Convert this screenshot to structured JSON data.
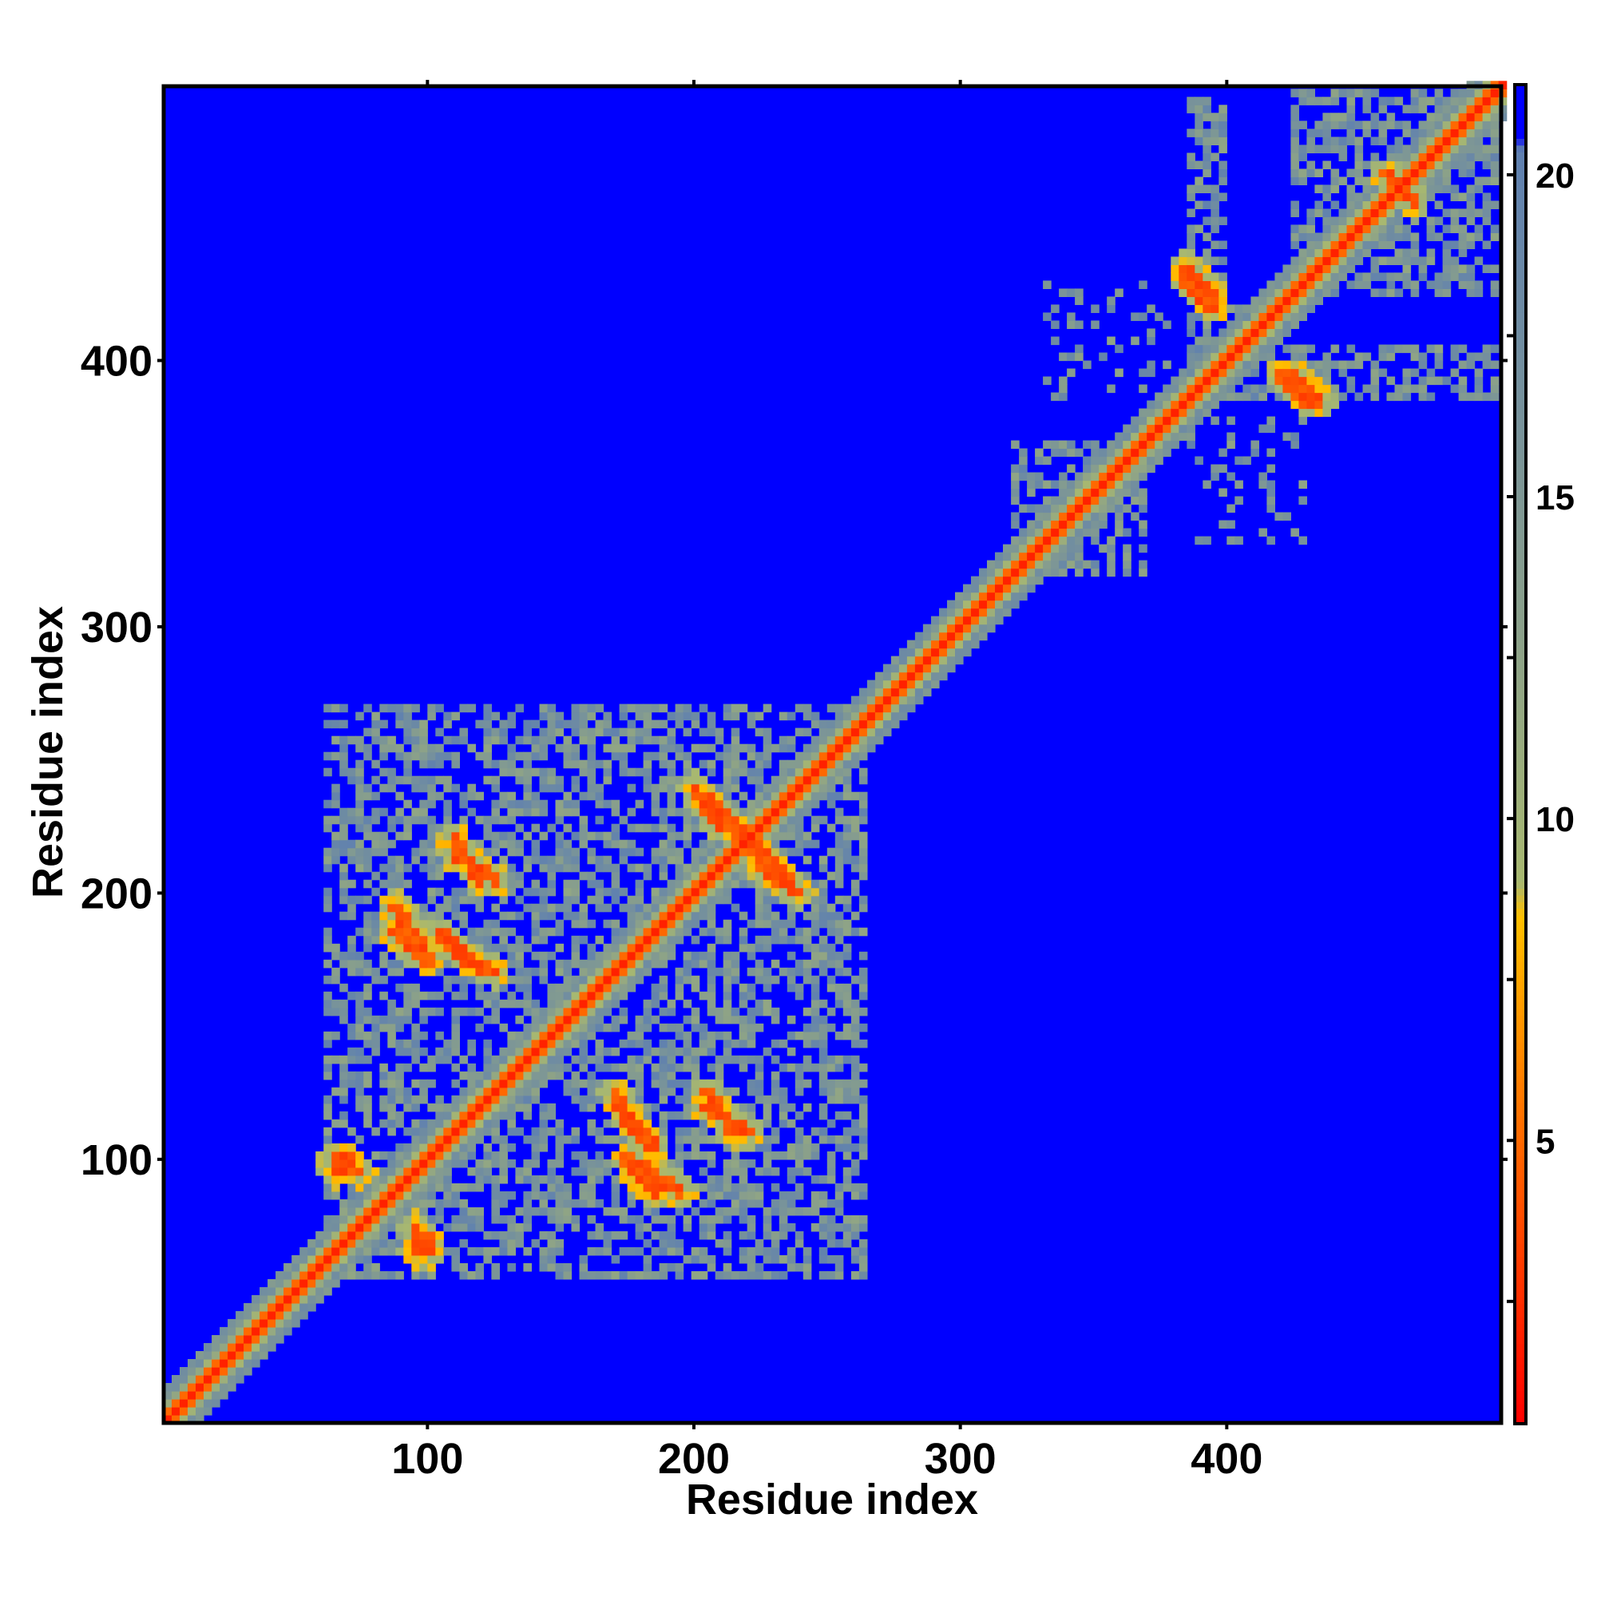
{
  "chart_data": {
    "type": "heatmap",
    "title": "",
    "xlabel": "Residue index",
    "ylabel": "Residue index",
    "xlim": [
      1,
      503
    ],
    "ylim": [
      1,
      503
    ],
    "x_ticks": [
      100,
      200,
      300,
      400
    ],
    "y_ticks": [
      100,
      200,
      300,
      400
    ],
    "colorbar": {
      "ticks": [
        5,
        10,
        15,
        20
      ],
      "range": [
        0.6,
        21.4
      ],
      "stops": [
        {
          "value": 0.6,
          "color": "#ff0000"
        },
        {
          "value": 6.0,
          "color": "#ff8000"
        },
        {
          "value": 8.5,
          "color": "#ffbf00"
        },
        {
          "value": 9.0,
          "color": "#a8b870"
        },
        {
          "value": 13.0,
          "color": "#8aa08a"
        },
        {
          "value": 20.4,
          "color": "#5f80b0"
        },
        {
          "value": 20.6,
          "color": "#0000ff"
        },
        {
          "value": 21.4,
          "color": "#0000ff"
        }
      ]
    },
    "background_value": 21,
    "contact_regions": [
      {
        "x": [
          60,
          265
        ],
        "y": [
          55,
          270
        ],
        "note": "large domain contact cluster"
      },
      {
        "x": [
          320,
          370
        ],
        "y": [
          320,
          370
        ]
      },
      {
        "x": [
          385,
          420
        ],
        "y": [
          385,
          420
        ]
      },
      {
        "x": [
          425,
          503
        ],
        "y": [
          425,
          503
        ]
      },
      {
        "x": [
          385,
          400
        ],
        "y": [
          420,
          500
        ]
      },
      {
        "x": [
          420,
          503
        ],
        "y": [
          385,
          405
        ]
      },
      {
        "x": [
          330,
          380
        ],
        "y": [
          385,
          430
        ],
        "sparse": true
      },
      {
        "x": [
          385,
          430
        ],
        "y": [
          330,
          380
        ],
        "sparse": true
      }
    ],
    "off_diagonal_strands": [
      {
        "from": [
          65,
          100
        ],
        "to": [
          75,
          95
        ]
      },
      {
        "from": [
          95,
          65
        ],
        "to": [
          100,
          70
        ]
      },
      {
        "from": [
          88,
          185
        ],
        "to": [
          100,
          175
        ]
      },
      {
        "from": [
          110,
          215
        ],
        "to": [
          125,
          205
        ]
      },
      {
        "from": [
          112,
          178
        ],
        "to": [
          125,
          170
        ]
      },
      {
        "from": [
          175,
          115
        ],
        "to": [
          185,
          105
        ]
      },
      {
        "from": [
          180,
          98
        ],
        "to": [
          195,
          88
        ]
      },
      {
        "from": [
          205,
          120
        ],
        "to": [
          220,
          110
        ]
      },
      {
        "from": [
          205,
          235
        ],
        "to": [
          225,
          215
        ]
      },
      {
        "from": [
          225,
          210
        ],
        "to": [
          240,
          200
        ]
      },
      {
        "from": [
          385,
          430
        ],
        "to": [
          395,
          420
        ]
      },
      {
        "from": [
          425,
          395
        ],
        "to": [
          435,
          385
        ]
      },
      {
        "from": [
          460,
          470
        ],
        "to": [
          470,
          460
        ]
      }
    ]
  }
}
